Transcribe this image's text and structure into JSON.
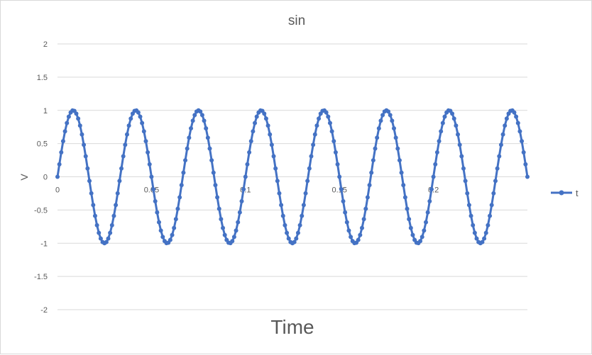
{
  "chart_data": {
    "type": "line",
    "title": "sin",
    "xlabel": "Time",
    "ylabel": "V",
    "xlim": [
      0,
      0.25
    ],
    "ylim": [
      -2,
      2
    ],
    "y_ticks": [
      "2",
      "1.5",
      "1",
      "0.5",
      "0",
      "-0.5",
      "-1",
      "-1.5",
      "-2"
    ],
    "y_tick_values": [
      2,
      1.5,
      1,
      0.5,
      0,
      -0.5,
      -1,
      -1.5,
      -2
    ],
    "x_ticks": [
      "0",
      "0.05",
      "0.1",
      "0.15",
      "0.2"
    ],
    "x_tick_values": [
      0,
      0.05,
      0.1,
      0.15,
      0.2
    ],
    "grid": "horizontal",
    "legend_position": "right",
    "series": [
      {
        "name": "t",
        "color": "#4472c4",
        "function": "sin(2*pi*30*x)",
        "x_start": 0,
        "x_end": 0.25,
        "num_points": 251
      }
    ]
  }
}
